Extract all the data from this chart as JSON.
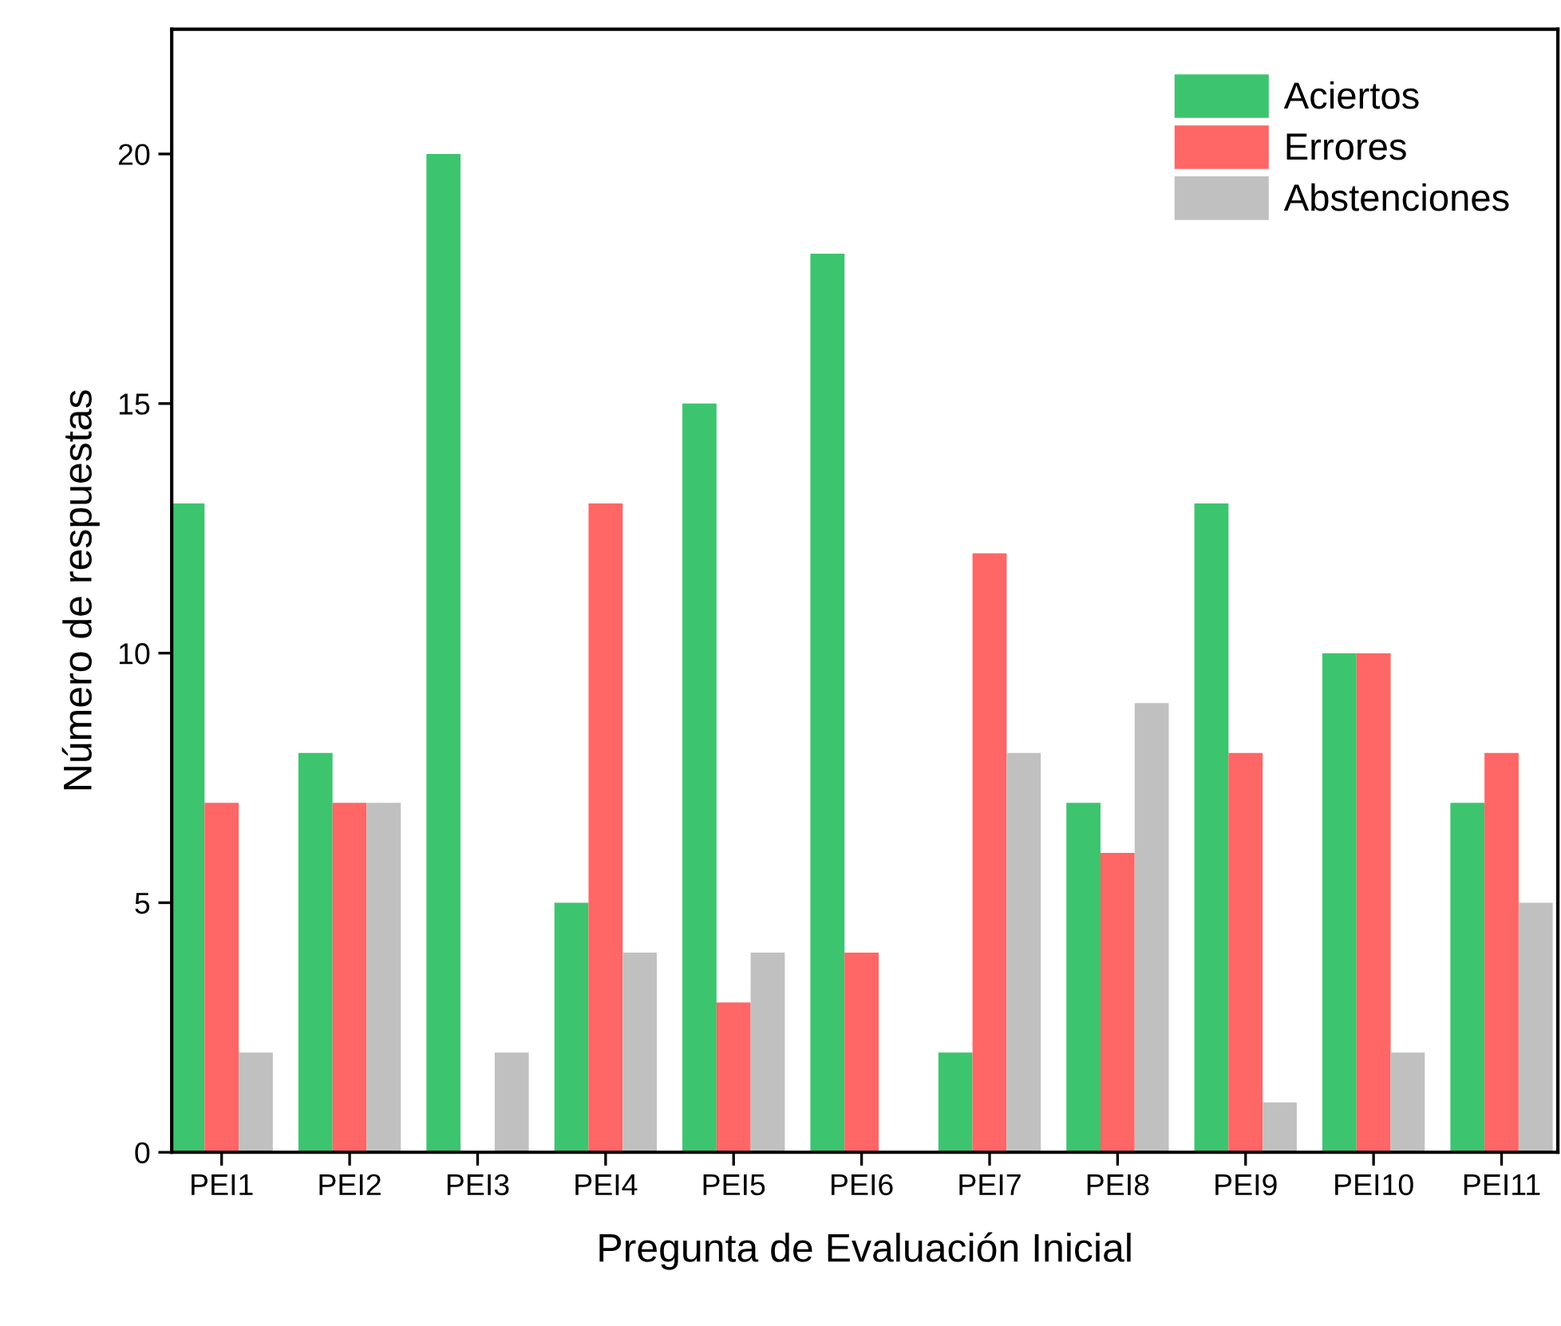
{
  "chart_data": {
    "type": "bar",
    "xlabel": "Pregunta de Evaluación Inicial",
    "ylabel": "Número de respuestas",
    "categories": [
      "PEI1",
      "PEI2",
      "PEI3",
      "PEI4",
      "PEI5",
      "PEI6",
      "PEI7",
      "PEI8",
      "PEI9",
      "PEI10",
      "PEI11"
    ],
    "series": [
      {
        "name": "Aciertos",
        "color": "#3dc46f",
        "values": [
          13,
          8,
          20,
          5,
          15,
          18,
          2,
          7,
          13,
          10,
          7
        ]
      },
      {
        "name": "Errores",
        "color": "#ff6666",
        "values": [
          7,
          7,
          0,
          13,
          3,
          4,
          12,
          6,
          8,
          10,
          8
        ]
      },
      {
        "name": "Abstenciones",
        "color": "#c0c0c0",
        "values": [
          2,
          7,
          2,
          4,
          4,
          0,
          8,
          9,
          1,
          2,
          5
        ]
      }
    ],
    "ylim": [
      0,
      22.5
    ],
    "yticks": [
      0,
      5,
      10,
      15,
      20
    ],
    "grid": false,
    "legend": "top right"
  }
}
